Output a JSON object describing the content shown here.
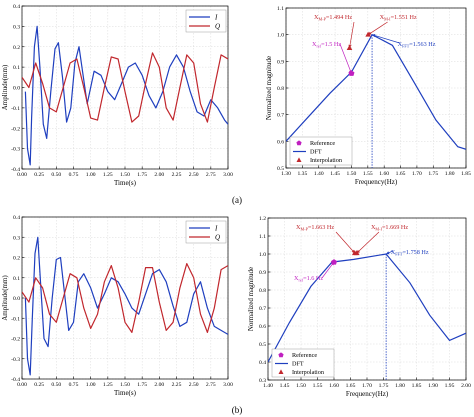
{
  "chart_data": [
    {
      "panel": "a",
      "position": "left",
      "type": "line",
      "xlabel": "Time(s)",
      "ylabel": "Amplitude(mm)",
      "xlim": [
        0.0,
        3.0
      ],
      "ylim": [
        -0.4,
        0.4
      ],
      "xticks": [
        "0.00",
        "0.25",
        "0.50",
        "0.75",
        "1.00",
        "1.25",
        "1.50",
        "1.75",
        "2.00",
        "2.25",
        "2.50",
        "2.75",
        "3.00"
      ],
      "yticks": [
        "-0.4",
        "-0.3",
        "-0.2",
        "-0.1",
        "0.0",
        "0.1",
        "0.2",
        "0.3",
        "0.4"
      ],
      "grid": true,
      "legend_position": "top-right",
      "series": [
        {
          "name": "I",
          "color": "#1f3fbf",
          "x": [
            0.05,
            0.08,
            0.12,
            0.14,
            0.18,
            0.22,
            0.26,
            0.31,
            0.36,
            0.42,
            0.48,
            0.53,
            0.59,
            0.65,
            0.71,
            0.77,
            0.83,
            0.89,
            0.95,
            1.05,
            1.15,
            1.25,
            1.35,
            1.45,
            1.55,
            1.65,
            1.75,
            1.85,
            1.95,
            2.05,
            2.15,
            2.25,
            2.35,
            2.45,
            2.55,
            2.65,
            2.75,
            2.85,
            2.95,
            3.0
          ],
          "y": [
            -0.02,
            -0.3,
            -0.38,
            -0.15,
            0.2,
            0.3,
            0.1,
            -0.18,
            -0.25,
            -0.02,
            0.19,
            0.22,
            0.05,
            -0.17,
            -0.1,
            0.12,
            0.2,
            0.06,
            -0.08,
            0.08,
            0.06,
            -0.02,
            -0.06,
            0.02,
            0.1,
            0.12,
            0.06,
            -0.04,
            -0.1,
            -0.02,
            0.1,
            0.16,
            0.1,
            -0.02,
            -0.12,
            -0.14,
            -0.06,
            -0.1,
            -0.16,
            -0.18
          ]
        },
        {
          "name": "Q",
          "color": "#c1272d",
          "x": [
            0.0,
            0.1,
            0.2,
            0.3,
            0.4,
            0.5,
            0.6,
            0.7,
            0.8,
            0.9,
            1.0,
            1.1,
            1.2,
            1.3,
            1.4,
            1.5,
            1.6,
            1.7,
            1.8,
            1.9,
            2.0,
            2.1,
            2.2,
            2.3,
            2.4,
            2.5,
            2.6,
            2.7,
            2.8,
            2.9,
            3.0
          ],
          "y": [
            0.05,
            0.0,
            0.12,
            0.02,
            -0.1,
            -0.12,
            0.0,
            0.12,
            0.14,
            0.0,
            -0.15,
            -0.16,
            0.0,
            0.15,
            0.14,
            -0.02,
            -0.17,
            -0.14,
            0.02,
            0.17,
            0.1,
            -0.1,
            -0.16,
            0.0,
            0.16,
            0.12,
            -0.08,
            -0.17,
            0.0,
            0.16,
            0.14
          ]
        }
      ]
    },
    {
      "panel": "a",
      "position": "right",
      "type": "line",
      "xlabel": "Frequency(Hz)",
      "ylabel": "Normalized magnitude",
      "xlim": [
        1.3,
        1.85
      ],
      "ylim": [
        0.5,
        1.1
      ],
      "xticks": [
        "1.30",
        "1.35",
        "1.40",
        "1.45",
        "1.50",
        "1.55",
        "1.60",
        "1.65",
        "1.70",
        "1.75",
        "1.80",
        "1.85"
      ],
      "yticks": [
        "0.5",
        "0.6",
        "0.7",
        "0.8",
        "0.9",
        "1.0",
        "1.1"
      ],
      "grid": true,
      "legend_position": "bottom-left",
      "legend": [
        "Reference",
        "DFT",
        "Interpolation"
      ],
      "dft": {
        "x": [
          1.3,
          1.367,
          1.434,
          1.5,
          1.563,
          1.625,
          1.692,
          1.758,
          1.825,
          1.85
        ],
        "y": [
          0.6,
          0.69,
          0.78,
          0.86,
          1.0,
          0.96,
          0.82,
          0.68,
          0.58,
          0.57
        ]
      },
      "reference": {
        "x": 1.5,
        "y": 0.855
      },
      "interpolation": [
        {
          "x": 1.494,
          "y": 0.95
        },
        {
          "x": 1.551,
          "y": 1.0
        }
      ],
      "vline_x": 1.563,
      "annotations": [
        {
          "label": "X_{M-P}=1.494 Hz",
          "main": "X",
          "sub": "M-P",
          "rest": "=1.494 Hz",
          "color": "#c1272d"
        },
        {
          "label": "X_{M-I}=1.551 Hz",
          "main": "X",
          "sub": "M-I",
          "rest": "=1.551 Hz",
          "color": "#c1272d"
        },
        {
          "label": "X_{ref}=1.5 Hz",
          "main": "X",
          "sub": "ref",
          "rest": "=1.5 Hz",
          "color": "#c020c0"
        },
        {
          "label": "X_{FFT}=1.563 Hz",
          "main": "X",
          "sub": "FFT",
          "rest": "=1.563 Hz",
          "color": "#1f3fbf"
        }
      ]
    },
    {
      "panel": "b",
      "position": "left",
      "type": "line",
      "xlabel": "Time(s)",
      "ylabel": "Amplitude(mm)",
      "xlim": [
        0.0,
        3.0
      ],
      "ylim": [
        -0.4,
        0.4
      ],
      "xticks": [
        "0.00",
        "0.25",
        "0.50",
        "0.75",
        "1.00",
        "1.25",
        "1.50",
        "1.75",
        "2.00",
        "2.25",
        "2.50",
        "2.75",
        "3.00"
      ],
      "yticks": [
        "-0.4",
        "-0.3",
        "-0.2",
        "-0.1",
        "0.0",
        "0.1",
        "0.2",
        "0.3",
        "0.4"
      ],
      "grid": true,
      "legend_position": "top-right",
      "series": [
        {
          "name": "I",
          "color": "#1f3fbf",
          "x": [
            0.05,
            0.08,
            0.12,
            0.15,
            0.19,
            0.23,
            0.27,
            0.32,
            0.38,
            0.44,
            0.5,
            0.56,
            0.62,
            0.68,
            0.75,
            0.82,
            0.9,
            1.0,
            1.1,
            1.2,
            1.3,
            1.4,
            1.5,
            1.6,
            1.7,
            1.8,
            1.9,
            2.0,
            2.1,
            2.2,
            2.3,
            2.4,
            2.5,
            2.6,
            2.7,
            2.8,
            2.9,
            3.0
          ],
          "y": [
            0.0,
            -0.3,
            -0.38,
            -0.1,
            0.22,
            0.3,
            0.08,
            -0.2,
            -0.24,
            0.0,
            0.19,
            0.2,
            0.02,
            -0.16,
            -0.12,
            0.08,
            0.12,
            0.05,
            -0.05,
            0.02,
            0.1,
            0.08,
            0.02,
            -0.05,
            -0.08,
            0.02,
            0.12,
            0.14,
            0.08,
            -0.04,
            -0.14,
            -0.12,
            0.02,
            0.08,
            -0.05,
            -0.14,
            -0.16,
            -0.18
          ]
        },
        {
          "name": "Q",
          "color": "#c1272d",
          "x": [
            0.0,
            0.1,
            0.2,
            0.3,
            0.4,
            0.5,
            0.6,
            0.7,
            0.8,
            0.9,
            1.0,
            1.1,
            1.2,
            1.3,
            1.4,
            1.5,
            1.6,
            1.7,
            1.8,
            1.9,
            2.0,
            2.1,
            2.2,
            2.3,
            2.4,
            2.5,
            2.6,
            2.7,
            2.8,
            2.9,
            3.0
          ],
          "y": [
            0.03,
            -0.02,
            0.1,
            0.05,
            -0.08,
            -0.12,
            0.0,
            0.12,
            0.1,
            -0.05,
            -0.15,
            -0.08,
            0.08,
            0.16,
            0.05,
            -0.12,
            -0.17,
            -0.02,
            0.15,
            0.15,
            -0.02,
            -0.16,
            -0.12,
            0.05,
            0.17,
            0.1,
            -0.08,
            -0.17,
            -0.05,
            0.14,
            0.16
          ]
        }
      ]
    },
    {
      "panel": "b",
      "position": "right",
      "type": "line",
      "xlabel": "Frequency(Hz)",
      "ylabel": "Normalized magnitude",
      "xlim": [
        1.4,
        2.0
      ],
      "ylim": [
        0.3,
        1.2
      ],
      "xticks": [
        "1.40",
        "1.45",
        "1.50",
        "1.55",
        "1.60",
        "1.65",
        "1.70",
        "1.75",
        "1.80",
        "1.85",
        "1.90",
        "1.95",
        "2.00"
      ],
      "yticks": [
        "0.3",
        "0.4",
        "0.5",
        "0.6",
        "0.7",
        "0.8",
        "0.9",
        "1.0",
        "1.1",
        "1.2"
      ],
      "grid": true,
      "legend_position": "bottom-left",
      "legend": [
        "Reference",
        "DFT",
        "Interpolation"
      ],
      "dft": {
        "x": [
          1.4,
          1.465,
          1.53,
          1.594,
          1.66,
          1.758,
          1.83,
          1.89,
          1.95,
          2.0
        ],
        "y": [
          0.4,
          0.62,
          0.82,
          0.955,
          0.97,
          1.0,
          0.84,
          0.66,
          0.52,
          0.56
        ]
      },
      "reference": {
        "x": 1.6,
        "y": 0.955
      },
      "interpolation": [
        {
          "x": 1.663,
          "y": 1.005
        },
        {
          "x": 1.669,
          "y": 1.005
        }
      ],
      "vline_x": 1.758,
      "annotations": [
        {
          "label": "X_{M-P}=1.663 Hz",
          "main": "X",
          "sub": "M-P",
          "rest": "=1.663 Hz",
          "color": "#c1272d"
        },
        {
          "label": "X_{M-I}=1.669 Hz",
          "main": "X",
          "sub": "M-I",
          "rest": "=1.669 Hz",
          "color": "#c1272d"
        },
        {
          "label": "X_{ref}=1.6 Hz",
          "main": "X",
          "sub": "ref",
          "rest": "=1.6 Hz",
          "color": "#c020c0"
        },
        {
          "label": "X_{FFT}=1.758 Hz",
          "main": "X",
          "sub": "FFT",
          "rest": "=1.758 Hz",
          "color": "#1f3fbf"
        }
      ]
    }
  ],
  "panel_labels": [
    "(a)",
    "(b)"
  ],
  "colors": {
    "I": "#1f3fbf",
    "Q": "#c1272d",
    "reference": "#c020c0",
    "dft": "#1f3fbf",
    "interpolation": "#c1272d",
    "fft_line": "#1f3fbf"
  }
}
